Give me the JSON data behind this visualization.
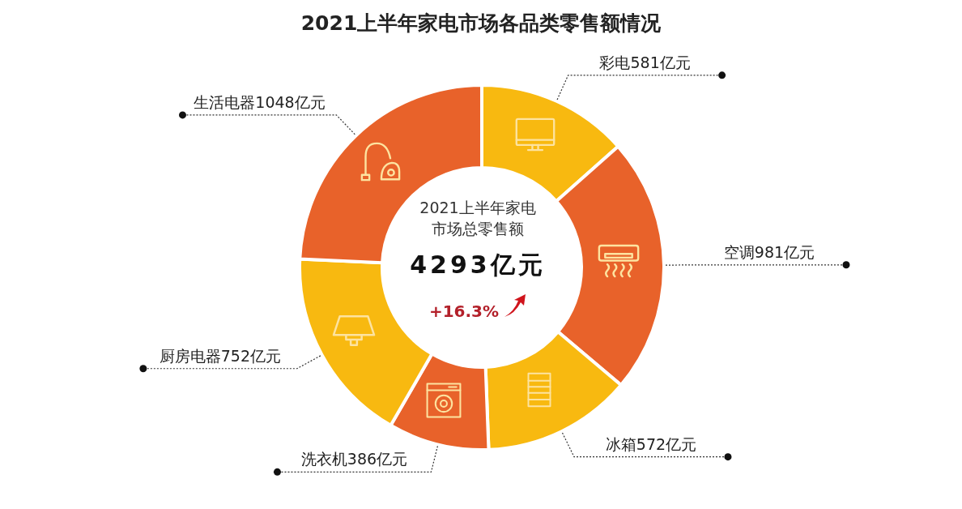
{
  "chart_data": {
    "type": "donut",
    "title": "2021上半年家电市场各品类零售额情况",
    "categories": [
      "彩电",
      "空调",
      "冰箱",
      "洗衣机",
      "厨房电器",
      "生活电器"
    ],
    "values": [
      581,
      981,
      572,
      386,
      752,
      1048
    ],
    "colors": [
      "#f8b910",
      "#e8622a",
      "#f8b910",
      "#e8622a",
      "#f8b910",
      "#e8622a"
    ],
    "value_labels": [
      "581亿元",
      "981亿元",
      "572亿元",
      "386亿元",
      "752亿元",
      "1048亿元"
    ],
    "annotations": [
      "2021上半年家电市场总零售额",
      "4293亿元",
      "+16.3%"
    ]
  }
}
